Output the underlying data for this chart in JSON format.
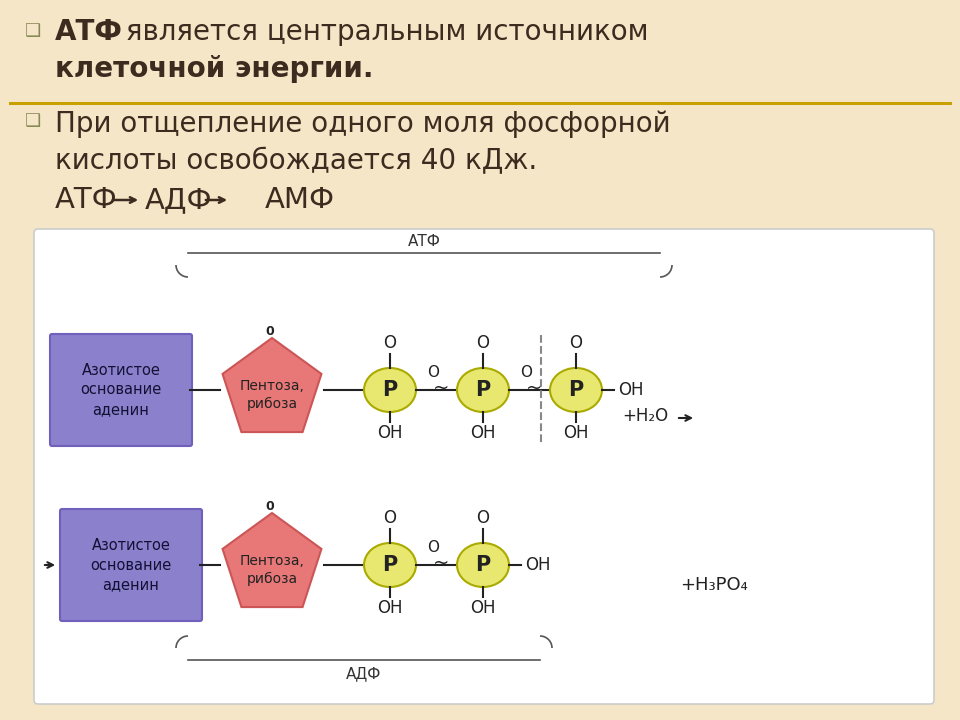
{
  "bg_color": "#f5e6c8",
  "diagram_bg": "#ffffff",
  "text_color": "#3d2b1f",
  "gold_line_color": "#c8a000",
  "purple_box_color": "#8b80cc",
  "purple_box_edge": "#7060bb",
  "pink_pentagon_color": "#e87878",
  "pink_pentagon_edge": "#cc5555",
  "yellow_ellipse_color": "#e8e870",
  "yellow_ellipse_edge": "#aaaa00",
  "bracket_color": "#555555",
  "arrow_color": "#222222",
  "atf_label": "АТФ",
  "adf_label": "АДФ",
  "box1_text": "Азотистое\nоснование\nаденин",
  "box2_text": "Пентоза,\nрибоза"
}
